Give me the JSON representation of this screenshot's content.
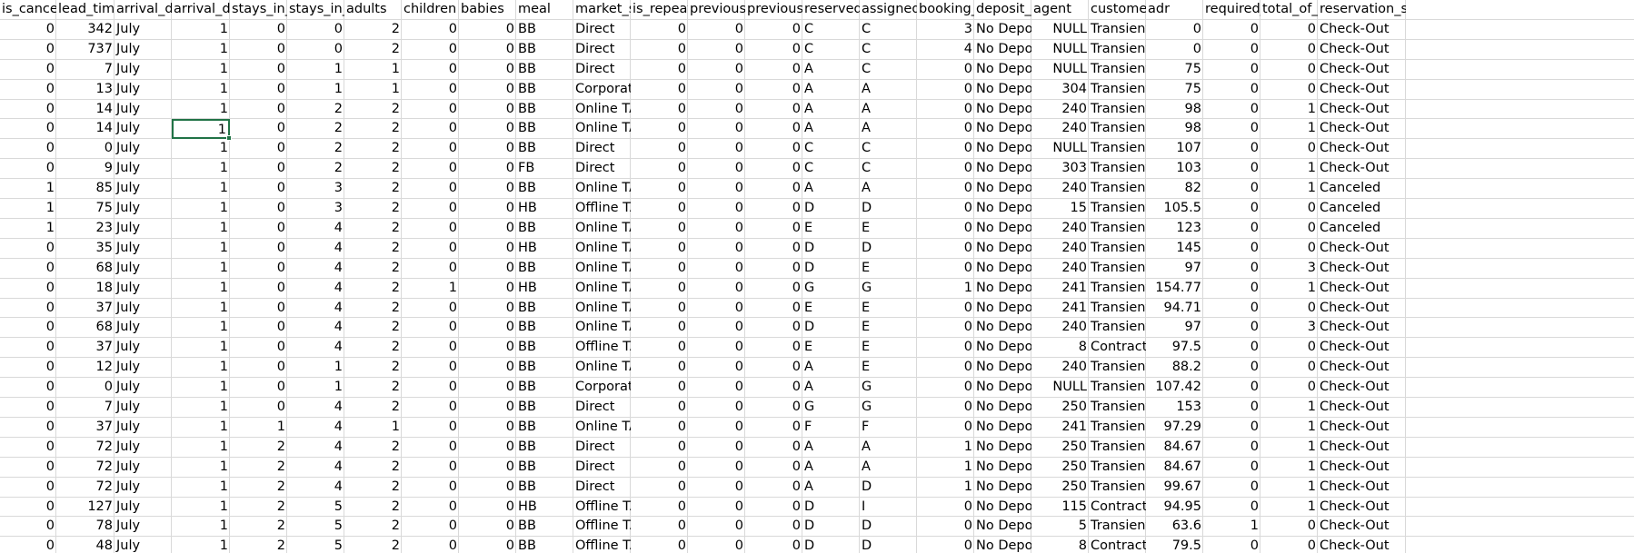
{
  "sheet": {
    "columns": [
      {
        "label": "is_cancele",
        "align": "right"
      },
      {
        "label": "lead_time",
        "align": "right"
      },
      {
        "label": "arrival_dat",
        "align": "left"
      },
      {
        "label": "arrival_dat",
        "align": "right"
      },
      {
        "label": "stays_in_w",
        "align": "right"
      },
      {
        "label": "stays_in_w",
        "align": "right"
      },
      {
        "label": "adults",
        "align": "right"
      },
      {
        "label": "children",
        "align": "right"
      },
      {
        "label": "babies",
        "align": "right"
      },
      {
        "label": "meal",
        "align": "left"
      },
      {
        "label": "market_se",
        "align": "left"
      },
      {
        "label": "is_repeate",
        "align": "right"
      },
      {
        "label": "previous_c",
        "align": "right"
      },
      {
        "label": "previous_b",
        "align": "right"
      },
      {
        "label": "reserved_r",
        "align": "left"
      },
      {
        "label": "assigned_r",
        "align": "left"
      },
      {
        "label": "booking_c",
        "align": "right"
      },
      {
        "label": "deposit_ty",
        "align": "left"
      },
      {
        "label": "agent",
        "align": "right"
      },
      {
        "label": "customer_",
        "align": "left"
      },
      {
        "label": "adr",
        "align": "right"
      },
      {
        "label": "required_c",
        "align": "right"
      },
      {
        "label": "total_of_sp",
        "align": "right"
      },
      {
        "label": "reservation_status",
        "align": "left"
      }
    ],
    "selected_cell": {
      "row": 5,
      "col": 3
    },
    "rows": [
      [
        "0",
        "342",
        "July",
        "1",
        "0",
        "0",
        "2",
        "0",
        "0",
        "BB",
        "Direct",
        "0",
        "0",
        "0",
        "C",
        "C",
        "3",
        "No Deposit",
        "NULL",
        "Transient",
        "0",
        "0",
        "0",
        "Check-Out"
      ],
      [
        "0",
        "737",
        "July",
        "1",
        "0",
        "0",
        "2",
        "0",
        "0",
        "BB",
        "Direct",
        "0",
        "0",
        "0",
        "C",
        "C",
        "4",
        "No Deposit",
        "NULL",
        "Transient",
        "0",
        "0",
        "0",
        "Check-Out"
      ],
      [
        "0",
        "7",
        "July",
        "1",
        "0",
        "1",
        "1",
        "0",
        "0",
        "BB",
        "Direct",
        "0",
        "0",
        "0",
        "A",
        "C",
        "0",
        "No Deposit",
        "NULL",
        "Transient",
        "75",
        "0",
        "0",
        "Check-Out"
      ],
      [
        "0",
        "13",
        "July",
        "1",
        "0",
        "1",
        "1",
        "0",
        "0",
        "BB",
        "Corporate",
        "0",
        "0",
        "0",
        "A",
        "A",
        "0",
        "No Deposit",
        "304",
        "Transient",
        "75",
        "0",
        "0",
        "Check-Out"
      ],
      [
        "0",
        "14",
        "July",
        "1",
        "0",
        "2",
        "2",
        "0",
        "0",
        "BB",
        "Online TA",
        "0",
        "0",
        "0",
        "A",
        "A",
        "0",
        "No Deposit",
        "240",
        "Transient",
        "98",
        "0",
        "1",
        "Check-Out"
      ],
      [
        "0",
        "14",
        "July",
        "1",
        "0",
        "2",
        "2",
        "0",
        "0",
        "BB",
        "Online TA",
        "0",
        "0",
        "0",
        "A",
        "A",
        "0",
        "No Deposit",
        "240",
        "Transient",
        "98",
        "0",
        "1",
        "Check-Out"
      ],
      [
        "0",
        "0",
        "July",
        "1",
        "0",
        "2",
        "2",
        "0",
        "0",
        "BB",
        "Direct",
        "0",
        "0",
        "0",
        "C",
        "C",
        "0",
        "No Deposit",
        "NULL",
        "Transient",
        "107",
        "0",
        "0",
        "Check-Out"
      ],
      [
        "0",
        "9",
        "July",
        "1",
        "0",
        "2",
        "2",
        "0",
        "0",
        "FB",
        "Direct",
        "0",
        "0",
        "0",
        "C",
        "C",
        "0",
        "No Deposit",
        "303",
        "Transient",
        "103",
        "0",
        "1",
        "Check-Out"
      ],
      [
        "1",
        "85",
        "July",
        "1",
        "0",
        "3",
        "2",
        "0",
        "0",
        "BB",
        "Online TA",
        "0",
        "0",
        "0",
        "A",
        "A",
        "0",
        "No Deposit",
        "240",
        "Transient",
        "82",
        "0",
        "1",
        "Canceled"
      ],
      [
        "1",
        "75",
        "July",
        "1",
        "0",
        "3",
        "2",
        "0",
        "0",
        "HB",
        "Offline TA",
        "0",
        "0",
        "0",
        "D",
        "D",
        "0",
        "No Deposit",
        "15",
        "Transient",
        "105.5",
        "0",
        "0",
        "Canceled"
      ],
      [
        "1",
        "23",
        "July",
        "1",
        "0",
        "4",
        "2",
        "0",
        "0",
        "BB",
        "Online TA",
        "0",
        "0",
        "0",
        "E",
        "E",
        "0",
        "No Deposit",
        "240",
        "Transient",
        "123",
        "0",
        "0",
        "Canceled"
      ],
      [
        "0",
        "35",
        "July",
        "1",
        "0",
        "4",
        "2",
        "0",
        "0",
        "HB",
        "Online TA",
        "0",
        "0",
        "0",
        "D",
        "D",
        "0",
        "No Deposit",
        "240",
        "Transient",
        "145",
        "0",
        "0",
        "Check-Out"
      ],
      [
        "0",
        "68",
        "July",
        "1",
        "0",
        "4",
        "2",
        "0",
        "0",
        "BB",
        "Online TA",
        "0",
        "0",
        "0",
        "D",
        "E",
        "0",
        "No Deposit",
        "240",
        "Transient",
        "97",
        "0",
        "3",
        "Check-Out"
      ],
      [
        "0",
        "18",
        "July",
        "1",
        "0",
        "4",
        "2",
        "1",
        "0",
        "HB",
        "Online TA",
        "0",
        "0",
        "0",
        "G",
        "G",
        "1",
        "No Deposit",
        "241",
        "Transient",
        "154.77",
        "0",
        "1",
        "Check-Out"
      ],
      [
        "0",
        "37",
        "July",
        "1",
        "0",
        "4",
        "2",
        "0",
        "0",
        "BB",
        "Online TA",
        "0",
        "0",
        "0",
        "E",
        "E",
        "0",
        "No Deposit",
        "241",
        "Transient",
        "94.71",
        "0",
        "0",
        "Check-Out"
      ],
      [
        "0",
        "68",
        "July",
        "1",
        "0",
        "4",
        "2",
        "0",
        "0",
        "BB",
        "Online TA",
        "0",
        "0",
        "0",
        "D",
        "E",
        "0",
        "No Deposit",
        "240",
        "Transient",
        "97",
        "0",
        "3",
        "Check-Out"
      ],
      [
        "0",
        "37",
        "July",
        "1",
        "0",
        "4",
        "2",
        "0",
        "0",
        "BB",
        "Offline TA",
        "0",
        "0",
        "0",
        "E",
        "E",
        "0",
        "No Deposit",
        "8",
        "Contract",
        "97.5",
        "0",
        "0",
        "Check-Out"
      ],
      [
        "0",
        "12",
        "July",
        "1",
        "0",
        "1",
        "2",
        "0",
        "0",
        "BB",
        "Online TA",
        "0",
        "0",
        "0",
        "A",
        "E",
        "0",
        "No Deposit",
        "240",
        "Transient",
        "88.2",
        "0",
        "0",
        "Check-Out"
      ],
      [
        "0",
        "0",
        "July",
        "1",
        "0",
        "1",
        "2",
        "0",
        "0",
        "BB",
        "Corporate",
        "0",
        "0",
        "0",
        "A",
        "G",
        "0",
        "No Deposit",
        "NULL",
        "Transient",
        "107.42",
        "0",
        "0",
        "Check-Out"
      ],
      [
        "0",
        "7",
        "July",
        "1",
        "0",
        "4",
        "2",
        "0",
        "0",
        "BB",
        "Direct",
        "0",
        "0",
        "0",
        "G",
        "G",
        "0",
        "No Deposit",
        "250",
        "Transient",
        "153",
        "0",
        "1",
        "Check-Out"
      ],
      [
        "0",
        "37",
        "July",
        "1",
        "1",
        "4",
        "1",
        "0",
        "0",
        "BB",
        "Online TA",
        "0",
        "0",
        "0",
        "F",
        "F",
        "0",
        "No Deposit",
        "241",
        "Transient",
        "97.29",
        "0",
        "1",
        "Check-Out"
      ],
      [
        "0",
        "72",
        "July",
        "1",
        "2",
        "4",
        "2",
        "0",
        "0",
        "BB",
        "Direct",
        "0",
        "0",
        "0",
        "A",
        "A",
        "1",
        "No Deposit",
        "250",
        "Transient",
        "84.67",
        "0",
        "1",
        "Check-Out"
      ],
      [
        "0",
        "72",
        "July",
        "1",
        "2",
        "4",
        "2",
        "0",
        "0",
        "BB",
        "Direct",
        "0",
        "0",
        "0",
        "A",
        "A",
        "1",
        "No Deposit",
        "250",
        "Transient",
        "84.67",
        "0",
        "1",
        "Check-Out"
      ],
      [
        "0",
        "72",
        "July",
        "1",
        "2",
        "4",
        "2",
        "0",
        "0",
        "BB",
        "Direct",
        "0",
        "0",
        "0",
        "A",
        "D",
        "1",
        "No Deposit",
        "250",
        "Transient",
        "99.67",
        "0",
        "1",
        "Check-Out"
      ],
      [
        "0",
        "127",
        "July",
        "1",
        "2",
        "5",
        "2",
        "0",
        "0",
        "HB",
        "Offline TA",
        "0",
        "0",
        "0",
        "D",
        "I",
        "0",
        "No Deposit",
        "115",
        "Contract",
        "94.95",
        "0",
        "1",
        "Check-Out"
      ],
      [
        "0",
        "78",
        "July",
        "1",
        "2",
        "5",
        "2",
        "0",
        "0",
        "BB",
        "Offline TA",
        "0",
        "0",
        "0",
        "D",
        "D",
        "0",
        "No Deposit",
        "5",
        "Transient",
        "63.6",
        "1",
        "0",
        "Check-Out"
      ],
      [
        "0",
        "48",
        "July",
        "1",
        "2",
        "5",
        "2",
        "0",
        "0",
        "BB",
        "Offline TA",
        "0",
        "0",
        "0",
        "D",
        "D",
        "0",
        "No Deposit",
        "8",
        "Contract",
        "79.5",
        "0",
        "0",
        "Check-Out"
      ]
    ]
  }
}
